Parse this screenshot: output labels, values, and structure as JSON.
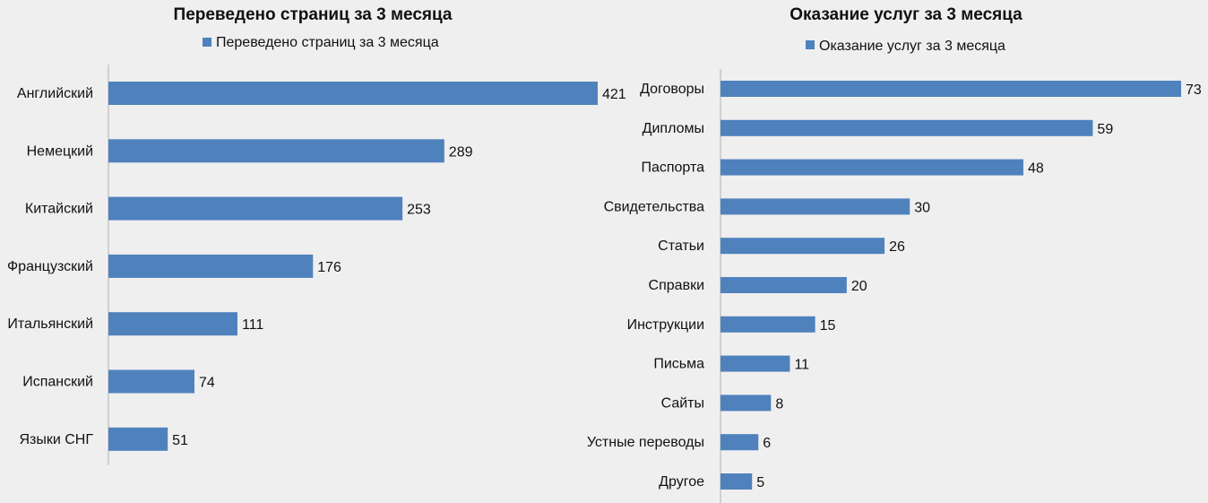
{
  "chart_data": [
    {
      "type": "bar",
      "orientation": "horizontal",
      "title": "Переведено страниц за 3 месяца",
      "legend_position": "top",
      "categories": [
        "Английский",
        "Немецкий",
        "Китайский",
        "Французский",
        "Итальянский",
        "Испанский",
        "Языки СНГ"
      ],
      "series": [
        {
          "name": "Переведено страниц за 3 месяца",
          "values": [
            421,
            289,
            253,
            176,
            111,
            74,
            51
          ]
        }
      ],
      "data_labels": [
        "421",
        "289",
        "253",
        "176",
        "111",
        "74",
        "51"
      ],
      "xlim": [
        0,
        421
      ],
      "grid": false,
      "bar_color": "#4f81bd"
    },
    {
      "type": "bar",
      "orientation": "horizontal",
      "title": "Оказание услуг за 3 месяца",
      "legend_position": "top",
      "categories": [
        "Договоры",
        "Дипломы",
        "Паспорта",
        "Свидетельства",
        "Статьи",
        "Справки",
        "Инструкции",
        "Письма",
        "Сайты",
        "Устные переводы",
        "Другое"
      ],
      "series": [
        {
          "name": "Оказание услуг за 3 месяца",
          "values": [
            73,
            59,
            48,
            30,
            26,
            20,
            15,
            11,
            8,
            6,
            5
          ]
        }
      ],
      "data_labels": [
        "73",
        "59",
        "48",
        "30",
        "26",
        "20",
        "15",
        "11",
        "8",
        "6",
        "5"
      ],
      "xlim": [
        0,
        73
      ],
      "grid": false,
      "bar_color": "#4f81bd"
    }
  ]
}
